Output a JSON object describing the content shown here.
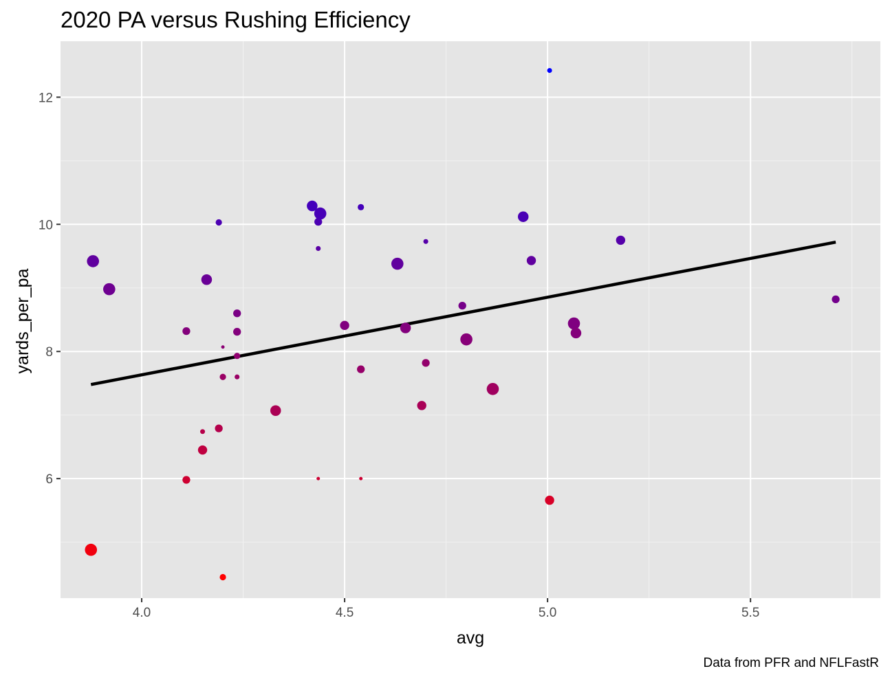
{
  "chart_data": {
    "type": "scatter",
    "title": "2020 PA versus Rushing Efficiency",
    "xlabel": "avg",
    "ylabel": "yards_per_pa",
    "caption": "Data from PFR and NFLFastR",
    "xlim": [
      3.8,
      5.82
    ],
    "ylim": [
      4.12,
      12.88
    ],
    "x_ticks": [
      4.0,
      4.5,
      5.0,
      5.5
    ],
    "x_tick_labels": [
      "4.0",
      "4.5",
      "5.0",
      "5.5"
    ],
    "y_ticks": [
      6,
      8,
      10,
      12
    ],
    "y_tick_labels": [
      "6",
      "8",
      "10",
      "12"
    ],
    "grid": true,
    "background": "#e5e5e5",
    "color_scale": {
      "low": "#ff0000",
      "high": "#0000ff"
    },
    "trend_line": {
      "x": [
        3.875,
        5.71
      ],
      "y": [
        7.48,
        9.72
      ],
      "color": "#000000"
    },
    "points": [
      {
        "x": 5.005,
        "y": 12.42,
        "size": 1
      },
      {
        "x": 4.42,
        "y": 10.29,
        "size": 5
      },
      {
        "x": 4.44,
        "y": 10.17,
        "size": 6
      },
      {
        "x": 4.54,
        "y": 10.27,
        "size": 2
      },
      {
        "x": 4.19,
        "y": 10.03,
        "size": 2
      },
      {
        "x": 4.435,
        "y": 10.04,
        "size": 3
      },
      {
        "x": 4.94,
        "y": 10.12,
        "size": 5
      },
      {
        "x": 4.435,
        "y": 9.62,
        "size": 1
      },
      {
        "x": 4.7,
        "y": 9.73,
        "size": 1
      },
      {
        "x": 5.18,
        "y": 9.75,
        "size": 4
      },
      {
        "x": 3.88,
        "y": 9.42,
        "size": 6
      },
      {
        "x": 4.63,
        "y": 9.38,
        "size": 6
      },
      {
        "x": 4.96,
        "y": 9.43,
        "size": 4
      },
      {
        "x": 4.16,
        "y": 9.13,
        "size": 5
      },
      {
        "x": 3.92,
        "y": 8.98,
        "size": 6
      },
      {
        "x": 5.71,
        "y": 8.82,
        "size": 3
      },
      {
        "x": 4.79,
        "y": 8.72,
        "size": 3
      },
      {
        "x": 4.235,
        "y": 8.6,
        "size": 3
      },
      {
        "x": 5.065,
        "y": 8.44,
        "size": 6
      },
      {
        "x": 4.5,
        "y": 8.41,
        "size": 4
      },
      {
        "x": 4.65,
        "y": 8.37,
        "size": 5
      },
      {
        "x": 4.11,
        "y": 8.32,
        "size": 3
      },
      {
        "x": 4.235,
        "y": 8.31,
        "size": 3
      },
      {
        "x": 5.07,
        "y": 8.29,
        "size": 5
      },
      {
        "x": 4.8,
        "y": 8.19,
        "size": 6
      },
      {
        "x": 4.2,
        "y": 8.07,
        "size": 0
      },
      {
        "x": 4.235,
        "y": 7.93,
        "size": 2
      },
      {
        "x": 4.7,
        "y": 7.82,
        "size": 3
      },
      {
        "x": 4.54,
        "y": 7.72,
        "size": 3
      },
      {
        "x": 4.2,
        "y": 7.6,
        "size": 2
      },
      {
        "x": 4.235,
        "y": 7.6,
        "size": 1
      },
      {
        "x": 4.865,
        "y": 7.41,
        "size": 6
      },
      {
        "x": 4.69,
        "y": 7.15,
        "size": 4
      },
      {
        "x": 4.33,
        "y": 7.07,
        "size": 5
      },
      {
        "x": 4.19,
        "y": 6.79,
        "size": 3
      },
      {
        "x": 4.15,
        "y": 6.74,
        "size": 1
      },
      {
        "x": 4.15,
        "y": 6.45,
        "size": 4
      },
      {
        "x": 4.435,
        "y": 6.0,
        "size": 0
      },
      {
        "x": 4.54,
        "y": 6.0,
        "size": 0
      },
      {
        "x": 4.11,
        "y": 5.98,
        "size": 3
      },
      {
        "x": 5.005,
        "y": 5.66,
        "size": 4
      },
      {
        "x": 3.875,
        "y": 4.88,
        "size": 6
      },
      {
        "x": 4.2,
        "y": 4.45,
        "size": 2
      }
    ]
  }
}
